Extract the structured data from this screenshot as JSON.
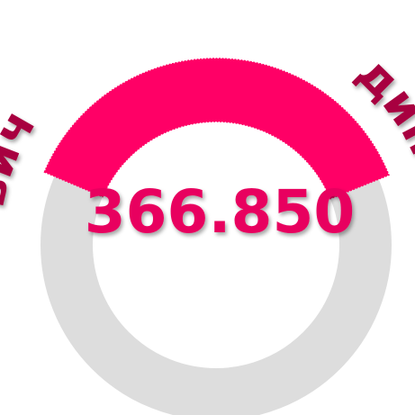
{
  "gauge": {
    "value": "366.850",
    "arc_text_left": "вич",
    "arc_text_right": "дин"
  }
}
